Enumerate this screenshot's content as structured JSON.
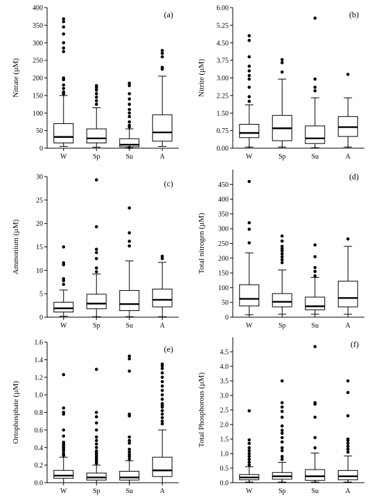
{
  "chart_data": [
    {
      "id": "a",
      "type": "box",
      "tag": "(a)",
      "ylabel": "Nitrate (µM)",
      "ylim": [
        0,
        400
      ],
      "yticks": [
        "0",
        "50",
        "100",
        "150",
        "200",
        "250",
        "300",
        "350",
        "400"
      ],
      "categories": [
        "W",
        "Sp",
        "Su",
        "A"
      ],
      "boxes": [
        {
          "name": "W",
          "whisker_low": 5,
          "q1": 15,
          "median": 32,
          "q3": 70,
          "whisker_high": 150,
          "outliers": [
            155,
            160,
            170,
            180,
            195,
            200,
            275,
            285,
            300,
            325,
            345,
            360,
            368
          ]
        },
        {
          "name": "Sp",
          "whisker_low": 3,
          "q1": 15,
          "median": 28,
          "q3": 55,
          "whisker_high": 115,
          "outliers": [
            125,
            135,
            145,
            155,
            165,
            172,
            178
          ]
        },
        {
          "name": "Su",
          "whisker_low": 1,
          "q1": 4,
          "median": 10,
          "q3": 27,
          "whisker_high": 55,
          "outliers": [
            2,
            60,
            65,
            75,
            90,
            100,
            110,
            125,
            140,
            155,
            178,
            185
          ]
        },
        {
          "name": "A",
          "whisker_low": 5,
          "q1": 20,
          "median": 45,
          "q3": 95,
          "whisker_high": 205,
          "outliers": [
            225,
            230,
            260,
            270,
            278
          ]
        }
      ]
    },
    {
      "id": "b",
      "type": "box",
      "tag": "(b)",
      "ylabel": "Nitrite (µM)",
      "ylim": [
        0,
        6
      ],
      "yticks": [
        "0.00",
        "0.75",
        "1.50",
        "2.25",
        "3.00",
        "3.75",
        "4.50",
        "5.25",
        "6.00"
      ],
      "categories": [
        "W",
        "Sp",
        "Su",
        "A"
      ],
      "boxes": [
        {
          "name": "W",
          "whisker_low": 0.05,
          "q1": 0.45,
          "median": 0.65,
          "q3": 1.02,
          "whisker_high": 1.85,
          "outliers": [
            2.0,
            2.2,
            2.6,
            2.95,
            3.1,
            3.3,
            3.5,
            3.9,
            4.6,
            4.8
          ]
        },
        {
          "name": "Sp",
          "whisker_low": 0.05,
          "q1": 0.32,
          "median": 0.85,
          "q3": 1.4,
          "whisker_high": 2.95,
          "outliers": [
            3.25,
            3.65,
            3.78
          ]
        },
        {
          "name": "Su",
          "whisker_low": 0.02,
          "q1": 0.2,
          "median": 0.42,
          "q3": 0.95,
          "whisker_high": 2.15,
          "outliers": [
            2.45,
            2.6,
            2.95,
            5.55
          ]
        },
        {
          "name": "A",
          "whisker_low": 0.05,
          "q1": 0.5,
          "median": 0.9,
          "q3": 1.35,
          "whisker_high": 2.15,
          "outliers": [
            3.15
          ]
        }
      ]
    },
    {
      "id": "c",
      "type": "box",
      "tag": "(c)",
      "ylabel": "Ammonium (µM)",
      "ylim": [
        0,
        30
      ],
      "yticks": [
        "0",
        "5",
        "10",
        "15",
        "20",
        "25",
        "30"
      ],
      "categories": [
        "W",
        "Sp",
        "Su",
        "A"
      ],
      "boxes": [
        {
          "name": "W",
          "whisker_low": 0.2,
          "q1": 1.1,
          "median": 1.9,
          "q3": 3.2,
          "whisker_high": 5.8,
          "outliers": [
            7.0,
            7.8,
            8.2,
            11.2,
            11.6,
            15.0
          ]
        },
        {
          "name": "Sp",
          "whisker_low": 0.1,
          "q1": 1.8,
          "median": 2.9,
          "q3": 4.9,
          "whisker_high": 9.2,
          "outliers": [
            9.7,
            10.5,
            12.5,
            13.8,
            14.5,
            19.3,
            29.3
          ]
        },
        {
          "name": "Su",
          "whisker_low": 0.1,
          "q1": 1.4,
          "median": 2.8,
          "q3": 5.7,
          "whisker_high": 12.0,
          "outliers": [
            15.2,
            16.2,
            18.0,
            23.3
          ]
        },
        {
          "name": "A",
          "whisker_low": 0.1,
          "q1": 2.2,
          "median": 3.7,
          "q3": 6.0,
          "whisker_high": 11.7,
          "outliers": [
            12.5,
            13.0
          ]
        }
      ]
    },
    {
      "id": "d",
      "type": "box",
      "tag": "(d)",
      "ylabel": "Total nitrogen (µM)",
      "ylim": [
        0,
        500
      ],
      "yticks": [
        "0",
        "50",
        "100",
        "150",
        "200",
        "250",
        "300",
        "350",
        "400",
        "450"
      ],
      "categories": [
        "W",
        "Sp",
        "Su",
        "A"
      ],
      "boxes": [
        {
          "name": "W",
          "whisker_low": 8,
          "q1": 38,
          "median": 62,
          "q3": 110,
          "whisker_high": 218,
          "outliers": [
            252,
            298,
            320,
            460
          ]
        },
        {
          "name": "Sp",
          "whisker_low": 10,
          "q1": 35,
          "median": 52,
          "q3": 80,
          "whisker_high": 160,
          "outliers": [
            185,
            195,
            205,
            215,
            225,
            232,
            240,
            258,
            275
          ]
        },
        {
          "name": "Su",
          "whisker_low": 10,
          "q1": 25,
          "median": 37,
          "q3": 68,
          "whisker_high": 135,
          "outliers": [
            140,
            155,
            168,
            205,
            245
          ]
        },
        {
          "name": "A",
          "whisker_low": 10,
          "q1": 35,
          "median": 65,
          "q3": 122,
          "whisker_high": 240,
          "outliers": [
            265
          ]
        }
      ]
    },
    {
      "id": "e",
      "type": "box",
      "tag": "(e)",
      "ylabel": "Ortophosphate (µM)",
      "ylim": [
        0,
        1.6
      ],
      "yticks": [
        "0.0",
        "0.2",
        "0.4",
        "0.6",
        "0.8",
        "1.0",
        "1.2",
        "1.4",
        "1.6"
      ],
      "categories": [
        "W",
        "Sp",
        "Su",
        "A"
      ],
      "boxes": [
        {
          "name": "W",
          "whisker_low": 0.0,
          "q1": 0.05,
          "median": 0.08,
          "q3": 0.14,
          "whisker_high": 0.29,
          "outliers": [
            0.31,
            0.33,
            0.36,
            0.38,
            0.4,
            0.42,
            0.44,
            0.46,
            0.53,
            0.6,
            0.78,
            0.8,
            0.85,
            1.23
          ]
        },
        {
          "name": "Sp",
          "whisker_low": 0.0,
          "q1": 0.03,
          "median": 0.06,
          "q3": 0.11,
          "whisker_high": 0.2,
          "outliers": [
            0.22,
            0.24,
            0.26,
            0.28,
            0.3,
            0.32,
            0.34,
            0.36,
            0.4,
            0.44,
            0.48,
            0.52,
            0.6,
            0.68,
            0.75,
            0.8,
            1.29
          ]
        },
        {
          "name": "Su",
          "whisker_low": 0.0,
          "q1": 0.03,
          "median": 0.06,
          "q3": 0.13,
          "whisker_high": 0.25,
          "outliers": [
            0.27,
            0.3,
            0.32,
            0.35,
            0.38,
            0.45,
            0.48,
            0.52,
            0.76,
            0.78,
            1.27,
            1.41,
            1.44
          ]
        },
        {
          "name": "A",
          "whisker_low": 0.0,
          "q1": 0.07,
          "median": 0.14,
          "q3": 0.29,
          "whisker_high": 0.6,
          "outliers": [
            0.67,
            0.7,
            0.74,
            0.78,
            0.82,
            0.86,
            0.88,
            0.9,
            0.95,
            1.0,
            1.05,
            1.1,
            1.15,
            1.2,
            1.25,
            1.3,
            1.33,
            1.35
          ]
        }
      ]
    },
    {
      "id": "f",
      "type": "box",
      "tag": "(f)",
      "ylabel": "Total Phosphorous (µM)",
      "ylim": [
        0,
        5
      ],
      "yticks": [
        "0.0",
        "0.5",
        "1.0",
        "1.5",
        "2.0",
        "2.5",
        "3.0",
        "3.5",
        "4.0",
        "4.5"
      ],
      "categories": [
        "W",
        "Sp",
        "Su",
        "A"
      ],
      "boxes": [
        {
          "name": "W",
          "whisker_low": 0.02,
          "q1": 0.1,
          "median": 0.18,
          "q3": 0.28,
          "whisker_high": 0.55,
          "outliers": [
            0.6,
            0.7,
            0.8,
            0.9,
            1.0,
            1.1,
            1.2,
            1.35,
            1.47,
            2.47
          ]
        },
        {
          "name": "Sp",
          "whisker_low": 0.02,
          "q1": 0.12,
          "median": 0.22,
          "q3": 0.35,
          "whisker_high": 0.7,
          "outliers": [
            0.8,
            0.9,
            1.1,
            1.2,
            1.4,
            1.55,
            1.7,
            1.8,
            1.95,
            2.25,
            2.45,
            2.6,
            2.75,
            3.5
          ]
        },
        {
          "name": "Su",
          "whisker_low": 0.02,
          "q1": 0.08,
          "median": 0.22,
          "q3": 0.45,
          "whisker_high": 1.02,
          "outliers": [
            1.2,
            1.55,
            2.25,
            2.7,
            2.75,
            4.68
          ]
        },
        {
          "name": "A",
          "whisker_low": 0.02,
          "q1": 0.1,
          "median": 0.22,
          "q3": 0.42,
          "whisker_high": 0.92,
          "outliers": [
            1.05,
            1.15,
            1.25,
            1.35,
            1.45,
            1.5,
            2.3,
            3.1,
            3.5
          ]
        }
      ]
    }
  ]
}
